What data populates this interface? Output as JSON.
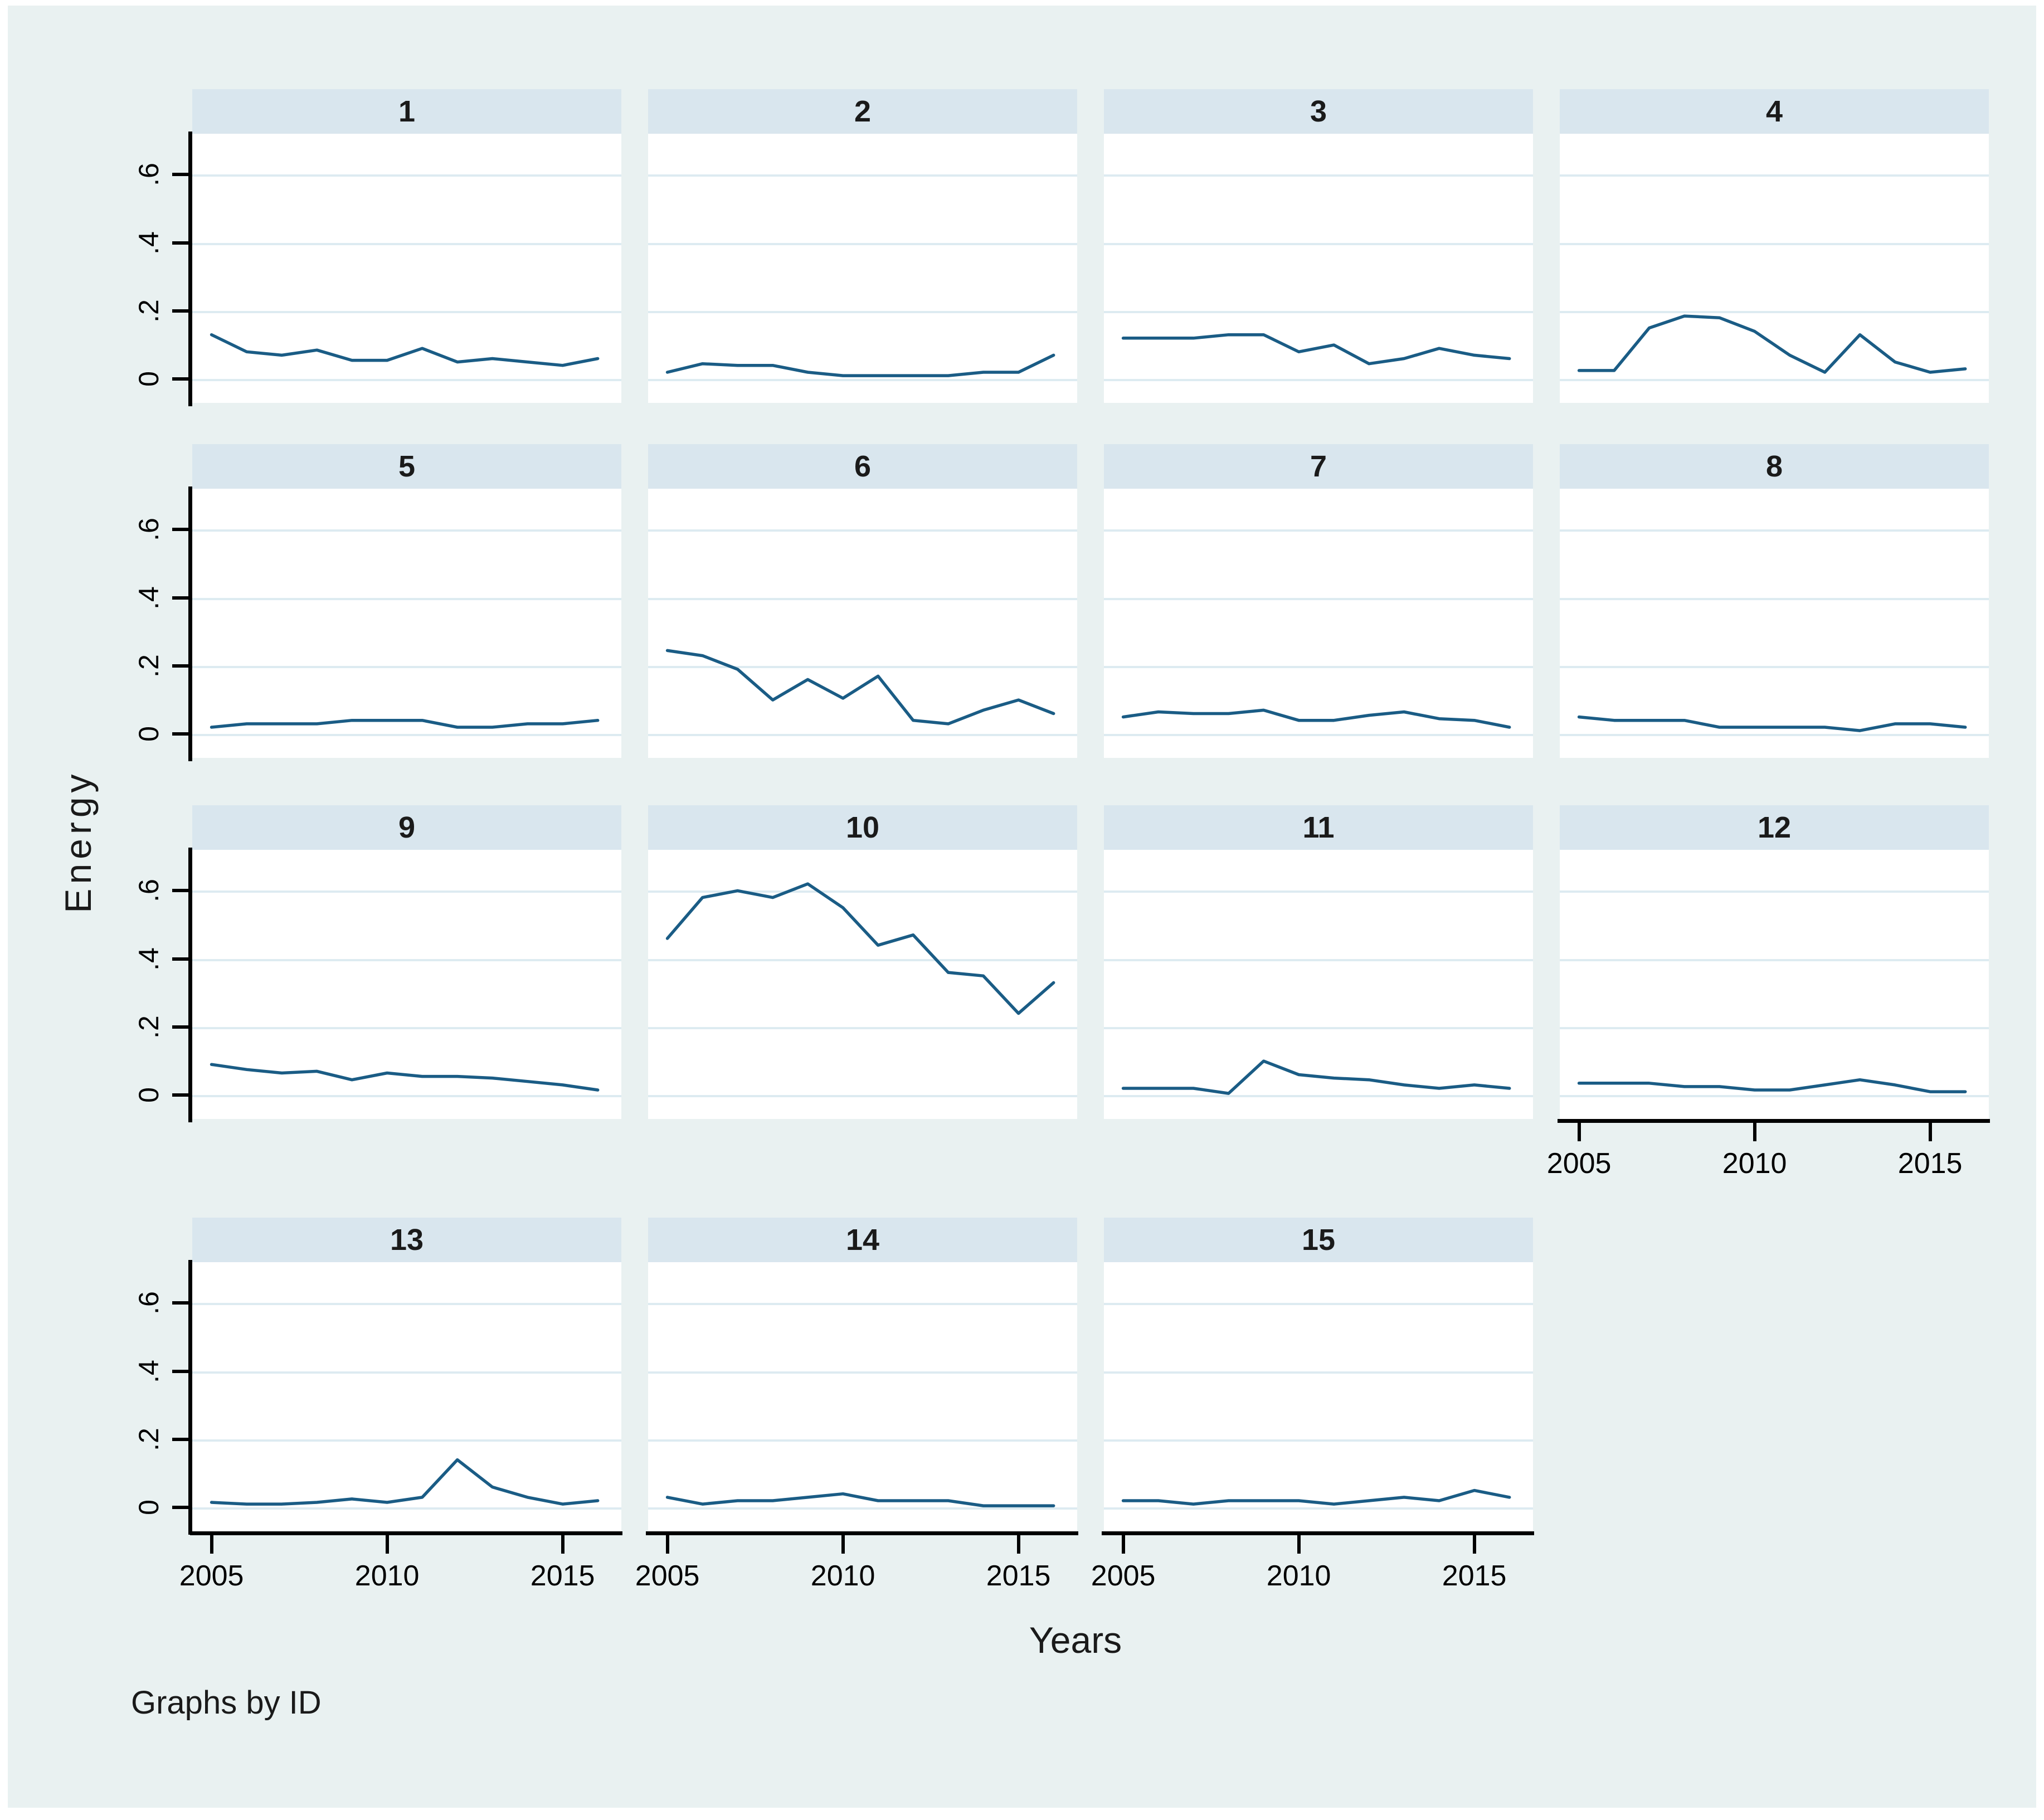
{
  "figure": {
    "ylabel": "Energy",
    "xlabel": "Years",
    "note": "Graphs by ID",
    "colors": {
      "canvas_bg": "#e9f1f1",
      "panel_bg": "#ffffff",
      "header_bg": "#d9e6ee",
      "gridline": "#ddebf1",
      "line": "#1a5c85",
      "axis": "#000000",
      "text": "#1a1a1a"
    }
  },
  "chart_data": {
    "type": "line",
    "layout": "small-multiples, 4 columns x 4 rows, 15 panels, shared axes",
    "x": [
      2005,
      2006,
      2007,
      2008,
      2009,
      2010,
      2011,
      2012,
      2013,
      2014,
      2015,
      2016
    ],
    "series": [
      {
        "name": "1",
        "values": [
          0.13,
          0.08,
          0.07,
          0.085,
          0.055,
          0.055,
          0.09,
          0.05,
          0.06,
          0.05,
          0.04,
          0.06
        ]
      },
      {
        "name": "2",
        "values": [
          0.02,
          0.045,
          0.04,
          0.04,
          0.02,
          0.01,
          0.01,
          0.01,
          0.01,
          0.02,
          0.02,
          0.07
        ]
      },
      {
        "name": "3",
        "values": [
          0.12,
          0.12,
          0.12,
          0.13,
          0.13,
          0.08,
          0.1,
          0.045,
          0.06,
          0.09,
          0.07,
          0.06
        ]
      },
      {
        "name": "4",
        "values": [
          0.025,
          0.025,
          0.15,
          0.185,
          0.18,
          0.14,
          0.07,
          0.02,
          0.13,
          0.05,
          0.02,
          0.03
        ]
      },
      {
        "name": "5",
        "values": [
          0.02,
          0.03,
          0.03,
          0.03,
          0.04,
          0.04,
          0.04,
          0.02,
          0.02,
          0.03,
          0.03,
          0.04
        ]
      },
      {
        "name": "6",
        "values": [
          0.245,
          0.23,
          0.19,
          0.1,
          0.16,
          0.105,
          0.17,
          0.04,
          0.03,
          0.07,
          0.1,
          0.06
        ]
      },
      {
        "name": "7",
        "values": [
          0.05,
          0.065,
          0.06,
          0.06,
          0.07,
          0.04,
          0.04,
          0.055,
          0.065,
          0.045,
          0.04,
          0.02
        ]
      },
      {
        "name": "8",
        "values": [
          0.05,
          0.04,
          0.04,
          0.04,
          0.02,
          0.02,
          0.02,
          0.02,
          0.01,
          0.03,
          0.03,
          0.02
        ]
      },
      {
        "name": "9",
        "values": [
          0.09,
          0.075,
          0.065,
          0.07,
          0.045,
          0.065,
          0.055,
          0.055,
          0.05,
          0.04,
          0.03,
          0.015
        ]
      },
      {
        "name": "10",
        "values": [
          0.46,
          0.58,
          0.6,
          0.58,
          0.62,
          0.55,
          0.44,
          0.47,
          0.36,
          0.35,
          0.24,
          0.33
        ]
      },
      {
        "name": "11",
        "values": [
          0.02,
          0.02,
          0.02,
          0.005,
          0.1,
          0.06,
          0.05,
          0.045,
          0.03,
          0.02,
          0.03,
          0.02
        ]
      },
      {
        "name": "12",
        "values": [
          0.035,
          0.035,
          0.035,
          0.025,
          0.025,
          0.015,
          0.015,
          0.03,
          0.045,
          0.03,
          0.01,
          0.01
        ]
      },
      {
        "name": "13",
        "values": [
          0.015,
          0.01,
          0.01,
          0.015,
          0.025,
          0.015,
          0.03,
          0.14,
          0.06,
          0.03,
          0.01,
          0.02
        ]
      },
      {
        "name": "14",
        "values": [
          0.03,
          0.01,
          0.02,
          0.02,
          0.03,
          0.04,
          0.02,
          0.02,
          0.02,
          0.005,
          0.005,
          0.005
        ]
      },
      {
        "name": "15",
        "values": [
          0.02,
          0.02,
          0.01,
          0.02,
          0.02,
          0.02,
          0.01,
          0.02,
          0.03,
          0.02,
          0.05,
          0.03
        ]
      }
    ],
    "title": "",
    "xlabel": "Years",
    "ylabel": "Energy",
    "ylim": [
      -0.07,
      0.72
    ],
    "yticks": [
      0,
      0.2,
      0.4,
      0.6
    ],
    "ytick_labels": [
      "0",
      ".2",
      ".4",
      ".6"
    ],
    "xticks": [
      2005,
      2010,
      2015
    ],
    "xtick_labels": [
      "2005",
      "2010",
      "2015"
    ],
    "grid": true,
    "legend": "none",
    "note": "Graphs by ID",
    "panels_with_yaxis": [
      "1",
      "5",
      "9",
      "13"
    ],
    "panels_with_xaxis": [
      "12",
      "13",
      "14",
      "15"
    ],
    "rows": [
      [
        "1",
        "2",
        "3",
        "4"
      ],
      [
        "5",
        "6",
        "7",
        "8"
      ],
      [
        "9",
        "10",
        "11",
        "12"
      ],
      [
        "13",
        "14",
        "15"
      ]
    ]
  }
}
